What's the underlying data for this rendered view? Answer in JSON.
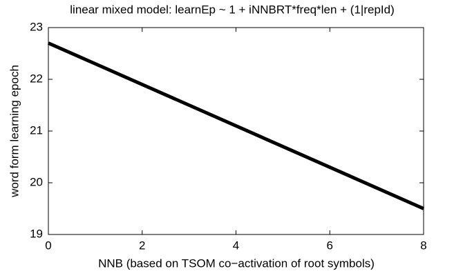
{
  "chart_data": {
    "type": "line",
    "title": "linear mixed model: learnEp ~ 1 + iNNBRT*freq*len + (1|repId)",
    "x_label": "NNB (based on TSOM co−activation of root symbols)",
    "y_label": "word form learning epoch",
    "x": [
      0,
      8
    ],
    "values": [
      22.7,
      19.5
    ],
    "color": "#000000",
    "xlim": [
      0,
      8
    ],
    "xticks": [
      0,
      2,
      4,
      6,
      8
    ],
    "ylim": [
      19,
      23
    ],
    "yticks": [
      19,
      20,
      21,
      22,
      23
    ]
  }
}
